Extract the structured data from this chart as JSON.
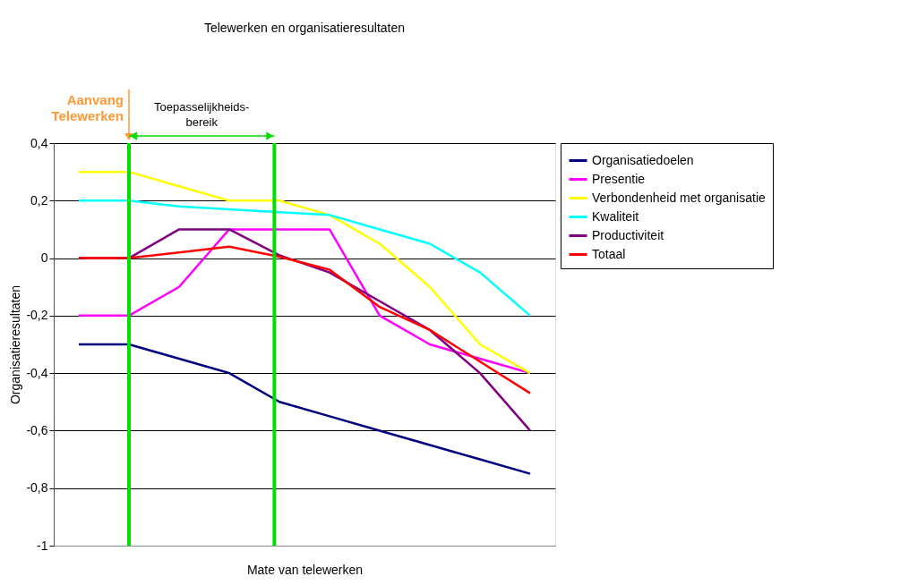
{
  "chart_data": {
    "type": "line",
    "title": "Telewerken en organisatieresultaten",
    "xlabel": "Mate van telewerken",
    "ylabel": "Organisatieresultaten",
    "categories": [
      null,
      null,
      null,
      null,
      null,
      null,
      null,
      null,
      null,
      null
    ],
    "tick_labels": "y",
    "ylim": [
      -1,
      0.4
    ],
    "yticks": [
      {
        "value": -1,
        "label": "-1"
      },
      {
        "value": -0.8,
        "label": "-0,8"
      },
      {
        "value": -0.6,
        "label": "-0,6"
      },
      {
        "value": -0.4,
        "label": "-0,4"
      },
      {
        "value": -0.2,
        "label": "-0,2"
      },
      {
        "value": 0,
        "label": "0"
      },
      {
        "value": 0.2,
        "label": "0,2"
      },
      {
        "value": 0.4,
        "label": "0,4"
      }
    ],
    "grid": "y",
    "legend": "right",
    "marker": "none",
    "line_style": "solid",
    "series": [
      {
        "name": "Organisatiedoelen",
        "color": "#000080",
        "values": [
          -0.3,
          -0.3,
          -0.35,
          -0.4,
          -0.5,
          -0.55,
          -0.6,
          -0.65,
          -0.7,
          -0.75
        ]
      },
      {
        "name": "Presentie",
        "color": "#ff00ff",
        "values": [
          -0.2,
          -0.2,
          -0.1,
          0.1,
          0.1,
          0.1,
          -0.2,
          -0.3,
          -0.35,
          -0.4
        ]
      },
      {
        "name": "Verbondenheid met organisatie",
        "color": "#ffff00",
        "values": [
          0.3,
          0.3,
          0.25,
          0.2,
          0.2,
          0.15,
          0.05,
          -0.1,
          -0.3,
          -0.4
        ]
      },
      {
        "name": "Kwaliteit",
        "color": "#00ffff",
        "values": [
          0.2,
          0.2,
          0.18,
          0.17,
          0.16,
          0.15,
          0.1,
          0.05,
          -0.05,
          -0.2
        ]
      },
      {
        "name": "Productiviteit",
        "color": "#800080",
        "values": [
          0,
          0,
          0.1,
          0.1,
          0.01,
          -0.05,
          -0.15,
          -0.25,
          -0.4,
          -0.6
        ]
      },
      {
        "name": "Totaal",
        "color": "#ff0000",
        "values": [
          0,
          0,
          0.02,
          0.04,
          0.005,
          -0.04,
          -0.17,
          -0.25,
          -0.36,
          -0.47
        ]
      }
    ],
    "annotations": [
      "Aanvang Telewerken",
      "Toepasselijkheids-bereik"
    ]
  }
}
